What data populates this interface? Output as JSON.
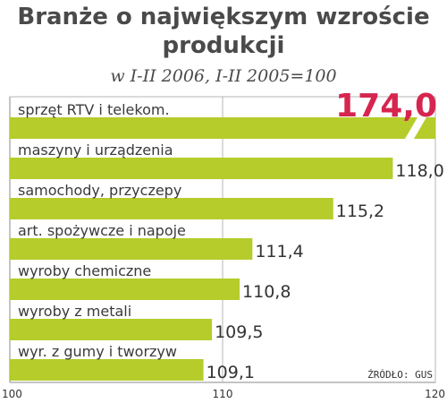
{
  "colors": {
    "bar": "#b5cc2b",
    "highlight": "#d6254f",
    "grid": "#b5b5b5",
    "axis": "#888888"
  },
  "chart_data": {
    "type": "bar",
    "orientation": "horizontal",
    "title_line1": "Branże o największym wzroście",
    "title_line2": "produkcji",
    "subtitle": "w I-II 2006, I-II 2005=100",
    "source": "ŹRÓDŁO: GUS",
    "categories": [
      "sprzęt RTV i telekom.",
      "maszyny i urządzenia",
      "samochody, przyczepy",
      "art. spożywcze i napoje",
      "wyroby chemiczne",
      "wyroby z metali",
      "wyr. z gumy i tworzyw"
    ],
    "values": [
      174.0,
      118.0,
      115.2,
      111.4,
      110.8,
      109.5,
      109.1
    ],
    "value_labels": [
      "174,0",
      "118,0",
      "115,2",
      "111,4",
      "110,8",
      "109,5",
      "109,1"
    ],
    "axis": {
      "min": 100,
      "max": 120,
      "ticks": [
        100,
        110,
        120
      ],
      "tick_labels": [
        "100",
        "110",
        "120"
      ],
      "broken_bar_index": 0
    },
    "grid": true,
    "legend": false
  }
}
